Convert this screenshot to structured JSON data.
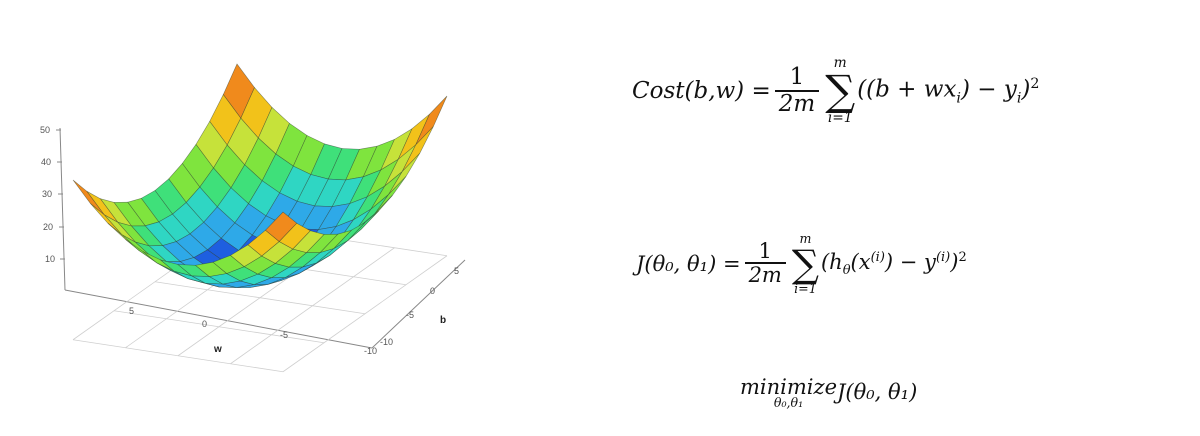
{
  "surface_plot": {
    "z_ticks": [
      "50",
      "40",
      "30",
      "20",
      "10"
    ],
    "w_ticks": [
      "5",
      "0",
      "-5"
    ],
    "b_ticks": [
      "5",
      "0",
      "-5",
      "-10"
    ],
    "origin_tick": "-10",
    "w_label": "w",
    "b_label": "b",
    "colormap": [
      "#1e5fe0",
      "#2ea9e8",
      "#2fd6c3",
      "#3fe07a",
      "#7fe43e",
      "#c6e23a",
      "#f2c21a",
      "#f08a1c",
      "#e2551a"
    ]
  },
  "equations": {
    "cost": {
      "lhs": "Cost(b,w) =",
      "frac_num": "1",
      "frac_den": "2m",
      "sum_top": "m",
      "sum_sym": "∑",
      "sum_bottom": "i=1",
      "body_pre": "((b + wx",
      "body_sub1": "i",
      "body_mid": ") − y",
      "body_sub2": "i",
      "body_post": ")",
      "power": "2"
    },
    "j": {
      "lhs": "J(θ₀, θ₁) =",
      "frac_num": "1",
      "frac_den": "2m",
      "sum_top": "m",
      "sum_sym": "∑",
      "sum_bottom": "i=1",
      "body_a": "(h",
      "body_theta": "θ",
      "body_b": "(x",
      "body_sup1": "(i)",
      "body_c": ") − y",
      "body_sup2": "(i)",
      "body_d": ")",
      "power": "2"
    },
    "minimize": {
      "word": "minimize",
      "sub": "θ₀,θ₁",
      "rest": "J(θ₀, θ₁)"
    }
  }
}
